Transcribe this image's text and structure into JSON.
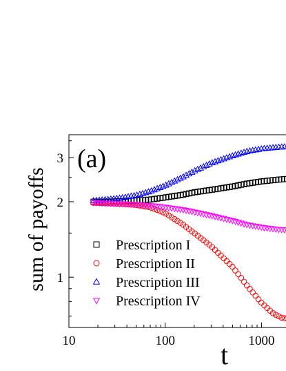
{
  "chart_data": {
    "type": "scatter",
    "panel_label": "(a)",
    "xlabel": "t",
    "ylabel": "sum of payoffs",
    "xscale": "log",
    "yscale": "log",
    "xlim": [
      10,
      2300
    ],
    "ylim": [
      0.63,
      3.7
    ],
    "x_ticks": [
      10,
      100,
      1000
    ],
    "x_tick_labels": [
      "10",
      "100",
      "1000"
    ],
    "y_ticks": [
      1,
      2,
      3
    ],
    "y_tick_labels": [
      "1",
      "2",
      "3"
    ],
    "legend_position": "lower-left",
    "series": [
      {
        "name": "Prescription I",
        "marker": "square",
        "color": "#000000",
        "x": [
          18,
          25,
          35,
          50,
          70,
          100,
          150,
          200,
          300,
          500,
          700,
          1000,
          1500,
          2000,
          2300
        ],
        "y": [
          2.0,
          2.0,
          2.01,
          2.02,
          2.04,
          2.08,
          2.13,
          2.18,
          2.23,
          2.3,
          2.36,
          2.41,
          2.45,
          2.47,
          2.47
        ]
      },
      {
        "name": "Prescription II",
        "marker": "circle",
        "color": "#ff0000",
        "x": [
          18,
          25,
          35,
          50,
          70,
          100,
          150,
          200,
          300,
          500,
          700,
          1000,
          1300,
          1600,
          2000,
          2300
        ],
        "y": [
          1.98,
          1.97,
          1.96,
          1.94,
          1.9,
          1.8,
          1.63,
          1.5,
          1.33,
          1.1,
          0.93,
          0.79,
          0.72,
          0.69,
          0.68,
          0.68
        ]
      },
      {
        "name": "Prescription III",
        "marker": "triangle-up",
        "color": "#0000ff",
        "x": [
          18,
          25,
          35,
          50,
          70,
          100,
          150,
          200,
          300,
          500,
          700,
          1000,
          1500,
          2000,
          2300
        ],
        "y": [
          2.02,
          2.04,
          2.07,
          2.12,
          2.2,
          2.32,
          2.5,
          2.65,
          2.85,
          3.05,
          3.17,
          3.25,
          3.3,
          3.32,
          3.32
        ]
      },
      {
        "name": "Prescription IV",
        "marker": "triangle-down",
        "color": "#ff00ff",
        "x": [
          18,
          25,
          35,
          50,
          70,
          100,
          150,
          200,
          300,
          500,
          700,
          1000,
          1500,
          2000,
          2300
        ],
        "y": [
          1.98,
          1.97,
          1.96,
          1.95,
          1.93,
          1.9,
          1.86,
          1.82,
          1.76,
          1.68,
          1.62,
          1.58,
          1.55,
          1.54,
          1.54
        ]
      }
    ]
  }
}
